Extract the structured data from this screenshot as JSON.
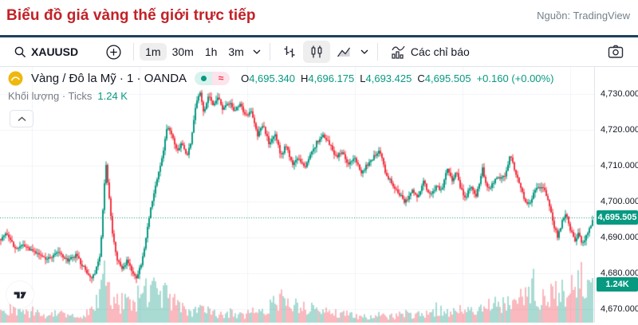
{
  "colors": {
    "accent_teal": "#089981",
    "accent_red": "#f23645",
    "title_red": "#c22127",
    "navy_bar": "#1e425f",
    "text_dark": "#131722",
    "text_gray": "#787b86",
    "border": "#e0e3eb",
    "grid": "#f0f3fa",
    "vol_up": "rgba(8,153,129,0.35)",
    "vol_down": "rgba(242,54,69,0.35)"
  },
  "header": {
    "title": "Biểu đồ giá vàng thế giới trực tiếp",
    "source": "Nguồn: TradingView"
  },
  "toolbar": {
    "symbol": "XAUUSD",
    "intervals": [
      "1m",
      "30m",
      "1h",
      "3m"
    ],
    "selected_interval": "1m",
    "indicators_label": "Các chỉ báo"
  },
  "legend": {
    "symbol_title": "Vàng / Đô la Mỹ · 1 · OANDA",
    "ohlc": {
      "o_label": "O",
      "o": "4,695.340",
      "h_label": "H",
      "h": "4,696.175",
      "l_label": "L",
      "l": "4,693.425",
      "c_label": "C",
      "c": "4,695.505",
      "change": "+0.160 (+0.00%)"
    },
    "volume_label": "Khối lượng · Ticks",
    "volume_value": "1.24 K"
  },
  "axis": {
    "labels": [
      {
        "text": "4,730.000",
        "price": 4730
      },
      {
        "text": "4,720.000",
        "price": 4720
      },
      {
        "text": "4,710.000",
        "price": 4710
      },
      {
        "text": "4,700.000",
        "price": 4700
      },
      {
        "text": "4,690.000",
        "price": 4690
      },
      {
        "text": "4,680.000",
        "price": 4680
      },
      {
        "text": "4,670.000",
        "price": 4670
      }
    ],
    "price_badge": {
      "text": "4,695.505",
      "price": 4695.505
    },
    "volume_badge": {
      "text": "1.24K"
    }
  },
  "chart_data": {
    "type": "candlestick",
    "symbol": "XAUUSD",
    "title": "Vàng / Đô la Mỹ · 1 · OANDA",
    "exchange": "OANDA",
    "interval": "1m",
    "last_candle": {
      "open": 4695.34,
      "high": 4696.175,
      "low": 4693.425,
      "close": 4695.505,
      "change": "+0.160 (+0.00%)"
    },
    "last_volume": "1.24K",
    "y_axis": {
      "min": 4667,
      "max": 4733,
      "ticks": [
        4670,
        4680,
        4690,
        4700,
        4710,
        4720,
        4730
      ]
    },
    "grid": true,
    "up_color": "#089981",
    "down_color": "#f23645",
    "price_path": [
      [
        0,
        4689.5
      ],
      [
        8,
        4691.5
      ],
      [
        18,
        4687
      ],
      [
        30,
        4687.5
      ],
      [
        45,
        4685.5
      ],
      [
        60,
        4684
      ],
      [
        72,
        4686
      ],
      [
        85,
        4683.5
      ],
      [
        95,
        4685
      ],
      [
        105,
        4681.5
      ],
      [
        113,
        4678.5
      ],
      [
        120,
        4680.5
      ],
      [
        126,
        4686
      ],
      [
        130,
        4702
      ],
      [
        133,
        4710
      ],
      [
        137,
        4701
      ],
      [
        141,
        4691
      ],
      [
        146,
        4684
      ],
      [
        153,
        4681
      ],
      [
        159,
        4683.5
      ],
      [
        165,
        4681
      ],
      [
        171,
        4679
      ],
      [
        177,
        4682
      ],
      [
        183,
        4690
      ],
      [
        189,
        4698.5
      ],
      [
        196,
        4705
      ],
      [
        203,
        4712
      ],
      [
        210,
        4721
      ],
      [
        215,
        4718.5
      ],
      [
        222,
        4714
      ],
      [
        228,
        4716.5
      ],
      [
        234,
        4712.5
      ],
      [
        240,
        4717
      ],
      [
        246,
        4728
      ],
      [
        251,
        4730.2
      ],
      [
        256,
        4724.5
      ],
      [
        261,
        4729.5
      ],
      [
        267,
        4727
      ],
      [
        273,
        4729
      ],
      [
        280,
        4725.5
      ],
      [
        287,
        4727.5
      ],
      [
        294,
        4725.5
      ],
      [
        301,
        4727.3
      ],
      [
        308,
        4723.5
      ],
      [
        315,
        4725.5
      ],
      [
        323,
        4718.5
      ],
      [
        330,
        4721.5
      ],
      [
        338,
        4715.5
      ],
      [
        345,
        4719
      ],
      [
        352,
        4712.5
      ],
      [
        359,
        4715.8
      ],
      [
        367,
        4709.8
      ],
      [
        374,
        4712.8
      ],
      [
        382,
        4709
      ],
      [
        390,
        4713.3
      ],
      [
        398,
        4716.8
      ],
      [
        406,
        4718.3
      ],
      [
        414,
        4716
      ],
      [
        421,
        4712.5
      ],
      [
        429,
        4713.8
      ],
      [
        437,
        4710.3
      ],
      [
        445,
        4712
      ],
      [
        453,
        4708.3
      ],
      [
        461,
        4710.3
      ],
      [
        470,
        4713
      ],
      [
        476,
        4714.5
      ],
      [
        484,
        4707.5
      ],
      [
        492,
        4705
      ],
      [
        500,
        4702.3
      ],
      [
        508,
        4699.8
      ],
      [
        516,
        4703
      ],
      [
        524,
        4700.8
      ],
      [
        531,
        4705.8
      ],
      [
        538,
        4701.5
      ],
      [
        546,
        4704
      ],
      [
        554,
        4703.5
      ],
      [
        561,
        4709.5
      ],
      [
        567,
        4705.5
      ],
      [
        572,
        4708.5
      ],
      [
        578,
        4703.5
      ],
      [
        584,
        4700.8
      ],
      [
        590,
        4704.5
      ],
      [
        597,
        4701
      ],
      [
        605,
        4709.2
      ],
      [
        612,
        4703
      ],
      [
        619,
        4705.5
      ],
      [
        626,
        4706.8
      ],
      [
        633,
        4707.5
      ],
      [
        640,
        4713.2
      ],
      [
        646,
        4708.5
      ],
      [
        652,
        4704.5
      ],
      [
        658,
        4700.5
      ],
      [
        664,
        4699.2
      ],
      [
        670,
        4702.5
      ],
      [
        676,
        4704.3
      ],
      [
        682,
        4703.8
      ],
      [
        688,
        4699.5
      ],
      [
        694,
        4693.5
      ],
      [
        699,
        4690.3
      ],
      [
        704,
        4693.8
      ],
      [
        710,
        4697.2
      ],
      [
        716,
        4691.5
      ],
      [
        721,
        4689
      ],
      [
        726,
        4691.8
      ],
      [
        730,
        4687.5
      ],
      [
        735,
        4690.5
      ],
      [
        740,
        4692.5
      ],
      [
        744,
        4695.5
      ]
    ],
    "volume_envelope": [
      [
        0,
        18
      ],
      [
        15,
        24
      ],
      [
        30,
        14
      ],
      [
        45,
        20
      ],
      [
        60,
        12
      ],
      [
        75,
        16
      ],
      [
        90,
        10
      ],
      [
        105,
        14
      ],
      [
        118,
        26
      ],
      [
        126,
        45
      ],
      [
        131,
        78
      ],
      [
        136,
        60
      ],
      [
        142,
        38
      ],
      [
        150,
        30
      ],
      [
        158,
        44
      ],
      [
        166,
        28
      ],
      [
        174,
        36
      ],
      [
        182,
        52
      ],
      [
        190,
        58
      ],
      [
        198,
        44
      ],
      [
        206,
        50
      ],
      [
        214,
        38
      ],
      [
        222,
        30
      ],
      [
        230,
        22
      ],
      [
        242,
        18
      ],
      [
        254,
        22
      ],
      [
        266,
        16
      ],
      [
        278,
        14
      ],
      [
        290,
        18
      ],
      [
        302,
        12
      ],
      [
        314,
        16
      ],
      [
        326,
        22
      ],
      [
        338,
        30
      ],
      [
        350,
        38
      ],
      [
        358,
        46
      ],
      [
        366,
        30
      ],
      [
        374,
        26
      ],
      [
        382,
        20
      ],
      [
        390,
        24
      ],
      [
        400,
        16
      ],
      [
        412,
        18
      ],
      [
        424,
        12
      ],
      [
        436,
        15
      ],
      [
        448,
        12
      ],
      [
        460,
        10
      ],
      [
        472,
        14
      ],
      [
        484,
        10
      ],
      [
        496,
        12
      ],
      [
        508,
        15
      ],
      [
        520,
        12
      ],
      [
        532,
        16
      ],
      [
        544,
        18
      ],
      [
        556,
        20
      ],
      [
        568,
        18
      ],
      [
        580,
        24
      ],
      [
        592,
        20
      ],
      [
        604,
        26
      ],
      [
        616,
        28
      ],
      [
        628,
        32
      ],
      [
        640,
        30
      ],
      [
        650,
        38
      ],
      [
        658,
        46
      ],
      [
        664,
        58
      ],
      [
        668,
        78
      ],
      [
        672,
        50
      ],
      [
        678,
        44
      ],
      [
        684,
        56
      ],
      [
        690,
        48
      ],
      [
        696,
        62
      ],
      [
        702,
        55
      ],
      [
        708,
        48
      ],
      [
        714,
        66
      ],
      [
        718,
        58
      ],
      [
        722,
        72
      ],
      [
        726,
        62
      ],
      [
        730,
        78
      ],
      [
        734,
        68
      ],
      [
        738,
        60
      ],
      [
        742,
        74
      ]
    ]
  }
}
